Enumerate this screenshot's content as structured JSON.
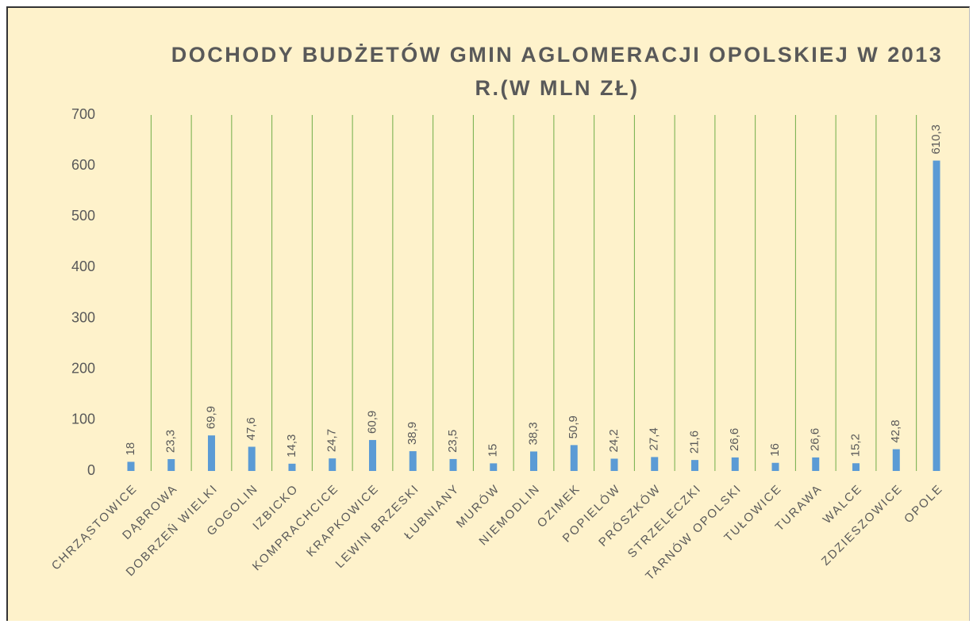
{
  "chart_data": {
    "type": "bar",
    "title": "DOCHODY BUDŻETÓW GMIN AGLOMERACJI OPOLSKIEJ W 2013 R.(W MLN ZŁ)",
    "categories": [
      "CHRZĄSTOWICE",
      "DĄBROWA",
      "DOBRZEŃ WIELKI",
      "GOGOLIN",
      "IZBICKO",
      "KOMPRACHCICE",
      "KRAPKOWICE",
      "LEWIN BRZESKI",
      "ŁUBNIANY",
      "MURÓW",
      "NIEMODLIN",
      "OZIMEK",
      "POPIELÓW",
      "PRÓSZKÓW",
      "STRZELECZKI",
      "TARNÓW OPOLSKI",
      "TUŁOWICE",
      "TURAWA",
      "WALCE",
      "ZDZIESZOWICE",
      "OPOLE"
    ],
    "values": [
      18,
      23.3,
      69.9,
      47.6,
      14.3,
      24.7,
      60.9,
      38.9,
      23.5,
      15,
      38.3,
      50.9,
      24.2,
      27.4,
      21.6,
      26.6,
      16,
      26.6,
      15.2,
      42.8,
      610.3
    ],
    "value_labels": [
      "18",
      "23,3",
      "69,9",
      "47,6",
      "14,3",
      "24,7",
      "60,9",
      "38,9",
      "23,5",
      "15",
      "38,3",
      "50,9",
      "24,2",
      "27,4",
      "21,6",
      "26,6",
      "16",
      "26,6",
      "15,2",
      "42,8",
      "610,3"
    ],
    "color": "#5b9bd5",
    "ylim": [
      0,
      700
    ],
    "yticks": [
      0,
      100,
      200,
      300,
      400,
      500,
      600,
      700
    ],
    "grid": true,
    "grid_color": "#70ad47"
  }
}
